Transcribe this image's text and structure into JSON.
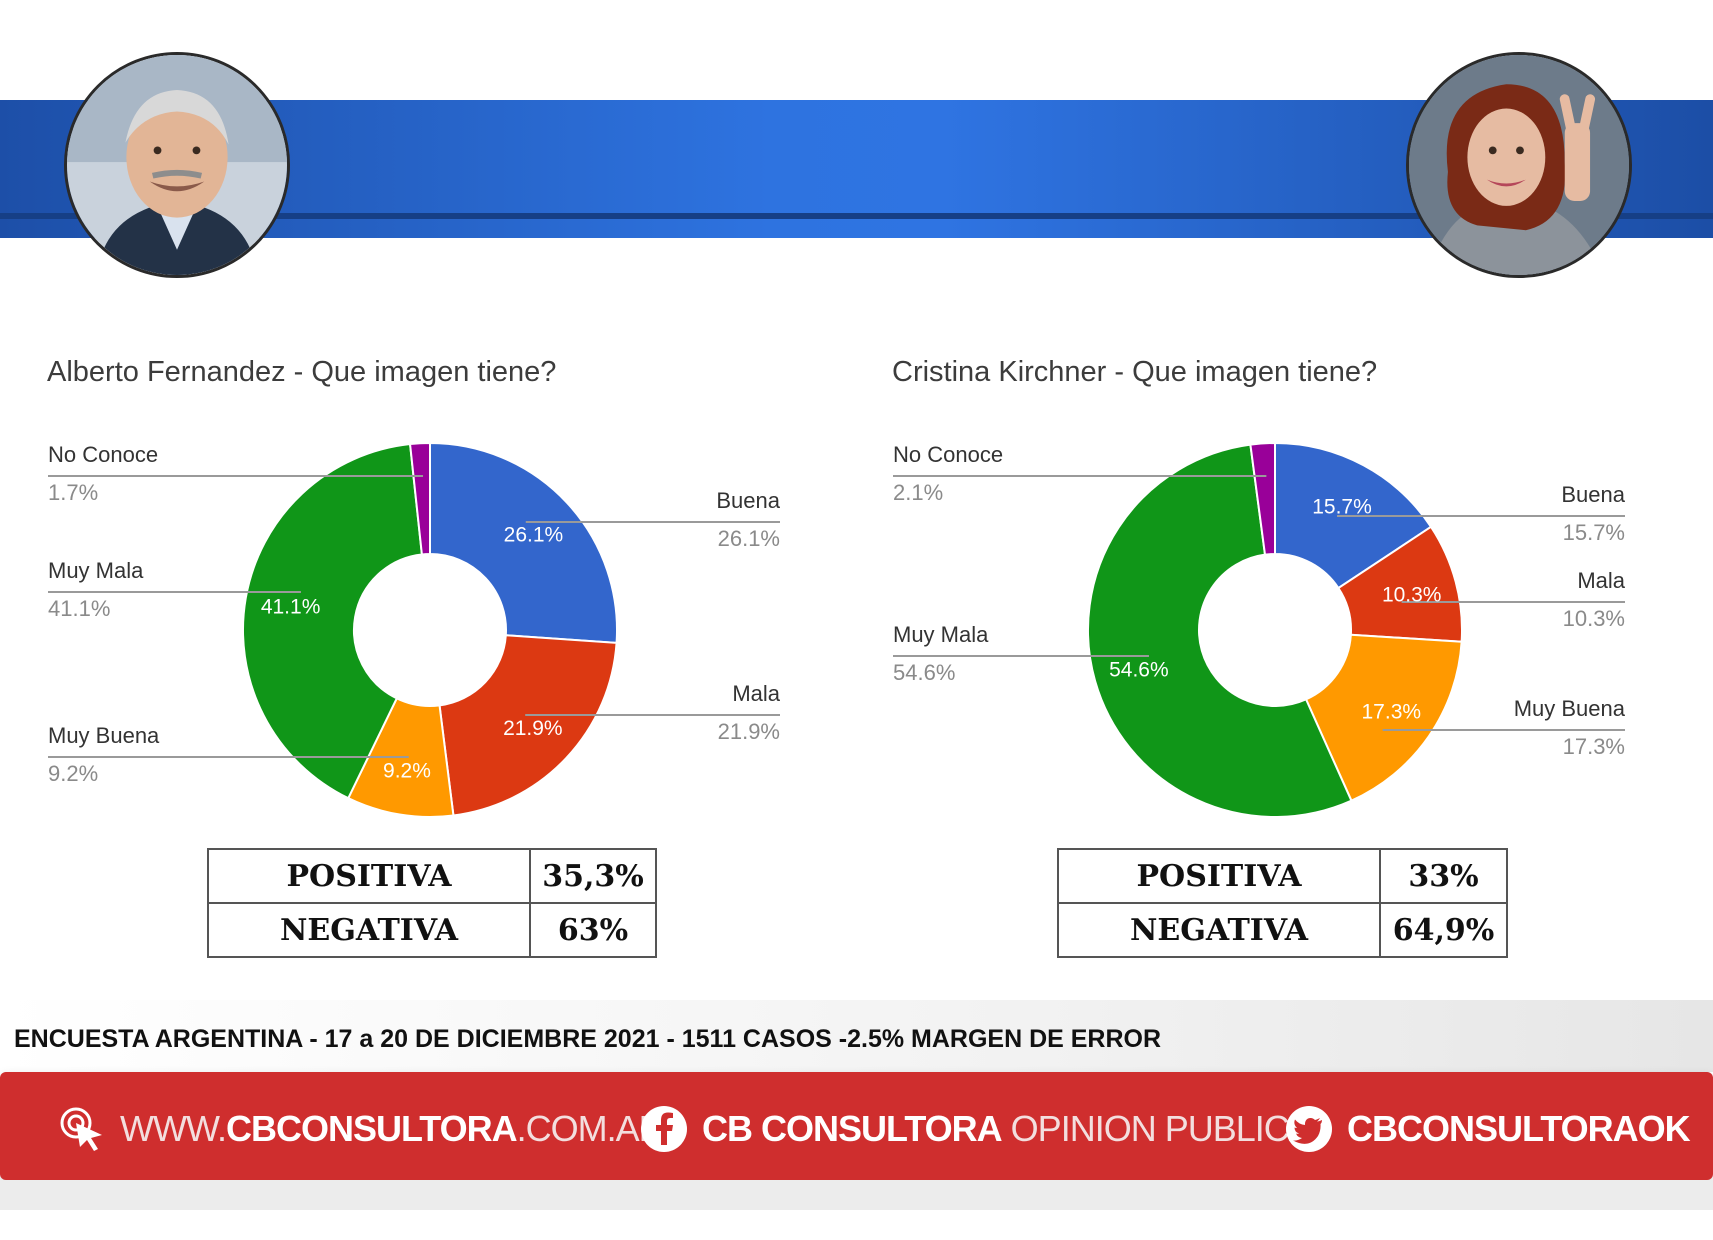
{
  "colors": {
    "buena": "#3366cc",
    "mala": "#dc3912",
    "muy_buena": "#ff9900",
    "muy_mala": "#109618",
    "no_conoce": "#990099",
    "banner": "#2e73e0",
    "footer_red": "#cf2e2e"
  },
  "chart_data": [
    {
      "type": "pie",
      "donut": true,
      "title": "Alberto Fernandez - Que imagen tiene?",
      "slices": [
        {
          "label": "Buena",
          "value": 26.1,
          "display": "26.1%",
          "color": "#3366cc"
        },
        {
          "label": "Mala",
          "value": 21.9,
          "display": "21.9%",
          "color": "#dc3912"
        },
        {
          "label": "Muy Buena",
          "value": 9.2,
          "display": "9.2%",
          "color": "#ff9900"
        },
        {
          "label": "Muy Mala",
          "value": 41.1,
          "display": "41.1%",
          "color": "#109618"
        },
        {
          "label": "No Conoce",
          "value": 1.7,
          "display": "1.7%",
          "color": "#990099"
        }
      ]
    },
    {
      "type": "pie",
      "donut": true,
      "title": "Cristina Kirchner - Que imagen tiene?",
      "slices": [
        {
          "label": "Buena",
          "value": 15.7,
          "display": "15.7%",
          "color": "#3366cc"
        },
        {
          "label": "Mala",
          "value": 10.3,
          "display": "10.3%",
          "color": "#dc3912"
        },
        {
          "label": "Muy Buena",
          "value": 17.3,
          "display": "17.3%",
          "color": "#ff9900"
        },
        {
          "label": "Muy Mala",
          "value": 54.6,
          "display": "54.6%",
          "color": "#109618"
        },
        {
          "label": "No Conoce",
          "value": 2.1,
          "display": "2.1%",
          "color": "#990099"
        }
      ]
    }
  ],
  "summary": [
    {
      "positiva_label": "POSITIVA",
      "positiva_value": "35,3%",
      "negativa_label": "NEGATIVA",
      "negativa_value": "63%"
    },
    {
      "positiva_label": "POSITIVA",
      "positiva_value": "33%",
      "negativa_label": "NEGATIVA",
      "negativa_value": "64,9%"
    }
  ],
  "footer": {
    "survey_line": "ENCUESTA ARGENTINA - 17 a 20 DE DICIEMBRE 2021 - 1511 CASOS -2.5% MARGEN DE ERROR",
    "web_prefix": "WWW.",
    "web_bold": "CBCONSULTORA",
    "web_suffix": ".COM.AR",
    "facebook_bold": "CB CONSULTORA",
    "facebook_light": " OPINION PUBLICA",
    "twitter_bold": "CBCONSULTORAOK"
  },
  "icons": {
    "web": "cursor-click-icon",
    "facebook": "facebook-icon",
    "twitter": "twitter-icon"
  }
}
